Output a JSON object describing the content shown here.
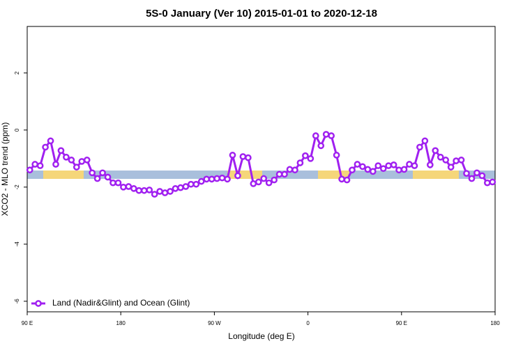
{
  "chart_data": {
    "type": "line",
    "title": "5S-0 January (Ver 10)   2015-01-01 to 2020-12-18",
    "x_label": "Longitude (deg E)",
    "y_label": "XCO2 - MLO trend (ppm)",
    "xlim": [
      90,
      540
    ],
    "xticks": [
      {
        "value": 90,
        "label": "90 E"
      },
      {
        "value": 180,
        "label": "180"
      },
      {
        "value": 270,
        "label": "90 W"
      },
      {
        "value": 360,
        "label": "0"
      },
      {
        "value": 450,
        "label": "90 E"
      },
      {
        "value": 540,
        "label": "180"
      }
    ],
    "ylim": [
      -6.37,
      3.63
    ],
    "yticks": [
      -6,
      -4,
      -2,
      0,
      2
    ],
    "legend": "bottom-left",
    "x": [
      92.5,
      97.5,
      102.5,
      107.5,
      112.5,
      117.5,
      122.5,
      127.5,
      132.5,
      137.5,
      142.5,
      147.5,
      152.5,
      157.5,
      162.5,
      167.5,
      172.5,
      177.5,
      182.5,
      187.5,
      192.5,
      197.5,
      202.5,
      207.5,
      212.5,
      217.5,
      222.5,
      227.5,
      232.5,
      237.5,
      242.5,
      247.5,
      252.5,
      257.5,
      262.5,
      267.5,
      272.5,
      277.5,
      282.5,
      287.5,
      292.5,
      297.5,
      302.5,
      307.5,
      312.5,
      317.5,
      322.5,
      327.5,
      332.5,
      337.5,
      342.5,
      347.5,
      352.5,
      357.5,
      362.5,
      367.5,
      372.5,
      377.5,
      382.5,
      387.5,
      392.5,
      397.5,
      402.5,
      407.5,
      412.5,
      417.5,
      422.5,
      427.5,
      432.5,
      437.5,
      442.5,
      447.5,
      452.5,
      457.5,
      462.5,
      467.5,
      472.5,
      477.5,
      482.5,
      487.5,
      492.5,
      497.5,
      502.5,
      507.5,
      512.5,
      517.5,
      522.5,
      527.5,
      532.5,
      537.5
    ],
    "series": [
      {
        "name": "Land (Nadir&Glint) and Ocean (Glint)",
        "color": "#a020f0",
        "values": [
          -1.4,
          -1.2,
          -1.25,
          -0.6,
          -0.38,
          -1.2,
          -0.72,
          -0.95,
          -1.05,
          -1.3,
          -1.1,
          -1.05,
          -1.5,
          -1.7,
          -1.5,
          -1.65,
          -1.85,
          -1.85,
          -2.0,
          -1.98,
          -2.05,
          -2.12,
          -2.12,
          -2.1,
          -2.25,
          -2.15,
          -2.2,
          -2.15,
          -2.05,
          -2.02,
          -1.98,
          -1.9,
          -1.9,
          -1.8,
          -1.72,
          -1.72,
          -1.7,
          -1.68,
          -1.72,
          -0.88,
          -1.6,
          -0.93,
          -0.97,
          -1.88,
          -1.82,
          -1.7,
          -1.85,
          -1.75,
          -1.55,
          -1.55,
          -1.38,
          -1.4,
          -1.15,
          -0.9,
          -1.0,
          -0.2,
          -0.55,
          -0.15,
          -0.2,
          -0.88,
          -1.72,
          -1.75,
          -1.4,
          -1.2,
          -1.28,
          -1.38,
          -1.45,
          -1.25,
          -1.35,
          -1.25,
          -1.22,
          -1.4,
          -1.38,
          -1.2,
          -1.25,
          -0.6,
          -0.38,
          -1.22,
          -0.72,
          -0.95,
          -1.05,
          -1.3,
          -1.08,
          -1.05,
          -1.52,
          -1.7,
          -1.5,
          -1.6,
          -1.85,
          -1.82
        ]
      }
    ]
  }
}
